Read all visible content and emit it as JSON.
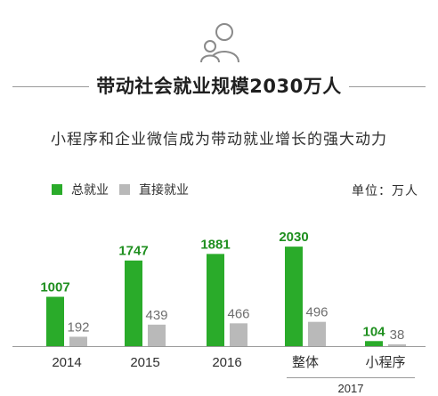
{
  "header": {
    "title": "带动社会就业规模2030万人",
    "subtitle": "小程序和企业微信成为带动就业增长的强大动力",
    "icon": "family-icon"
  },
  "legend": {
    "total_label": "总就业",
    "direct_label": "直接就业",
    "unit_label": "单位：万人"
  },
  "colors": {
    "total": "#2aab2a",
    "direct": "#b9b9b9",
    "total_text": "#1f8f1f",
    "direct_text": "#6e6e6e"
  },
  "chart_data": {
    "type": "bar",
    "categories": [
      "2014",
      "2015",
      "2016",
      "整体",
      "小程序"
    ],
    "series": [
      {
        "name": "总就业",
        "values": [
          1007,
          1747,
          1881,
          2030,
          104
        ]
      },
      {
        "name": "直接就业",
        "values": [
          192,
          439,
          466,
          496,
          38
        ]
      }
    ],
    "group_label": {
      "text": "2017",
      "categories": [
        "整体",
        "小程序"
      ]
    },
    "ylim": [
      0,
      2180
    ],
    "unit": "单位：万人",
    "grid": false,
    "legend_position": "top-left"
  }
}
